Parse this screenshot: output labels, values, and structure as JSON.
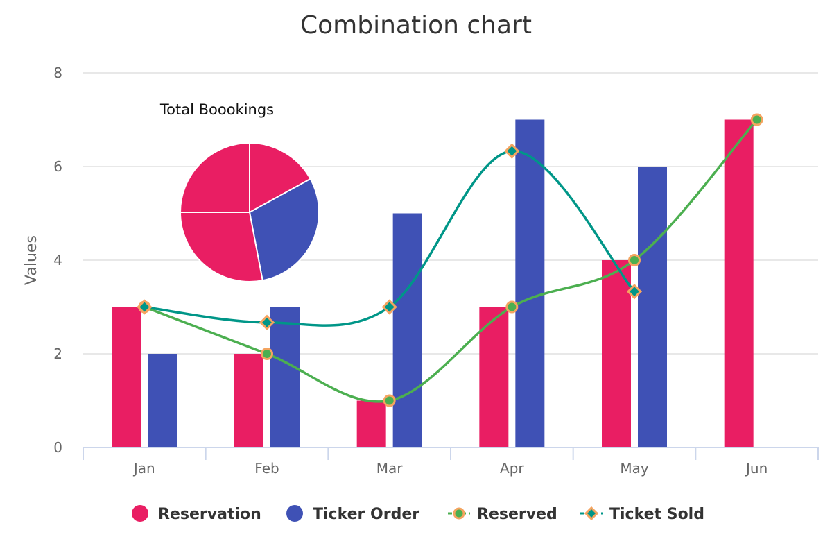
{
  "chart_data": {
    "type": "bar",
    "title": "Combination chart",
    "xlabel": "",
    "ylabel": "Values",
    "categories": [
      "Jan",
      "Feb",
      "Mar",
      "Apr",
      "May",
      "Jun"
    ],
    "ylim": [
      0,
      8
    ],
    "yticks": [
      0,
      2,
      4,
      6,
      8
    ],
    "grid": true,
    "legend_position": "bottom",
    "series": [
      {
        "name": "Reservation",
        "type": "column",
        "color": "#e91e63",
        "values": [
          3,
          2,
          1,
          3,
          4,
          7
        ]
      },
      {
        "name": "Ticker Order",
        "type": "column",
        "color": "#3f51b5",
        "values": [
          2,
          3,
          5,
          7,
          6,
          null
        ]
      },
      {
        "name": "Reserved",
        "type": "spline",
        "color": "#4caf50",
        "marker": "circle",
        "marker_fill": "#4caf50",
        "marker_stroke": "#f4a460",
        "values": [
          3,
          2,
          1,
          3,
          4,
          7
        ]
      },
      {
        "name": "Ticket Sold",
        "type": "spline",
        "color": "#009688",
        "marker": "diamond",
        "marker_fill": "#009688",
        "marker_stroke": "#f4a460",
        "values": [
          3,
          2.67,
          3,
          6.33,
          3.33,
          null
        ]
      }
    ],
    "pie": {
      "title": "Total Boookings",
      "slices": [
        {
          "value": 17,
          "color": "#e91e63"
        },
        {
          "value": 30,
          "color": "#3f51b5"
        },
        {
          "value": 28,
          "color": "#e91e63"
        },
        {
          "value": 25,
          "color": "#e91e63"
        }
      ]
    }
  }
}
